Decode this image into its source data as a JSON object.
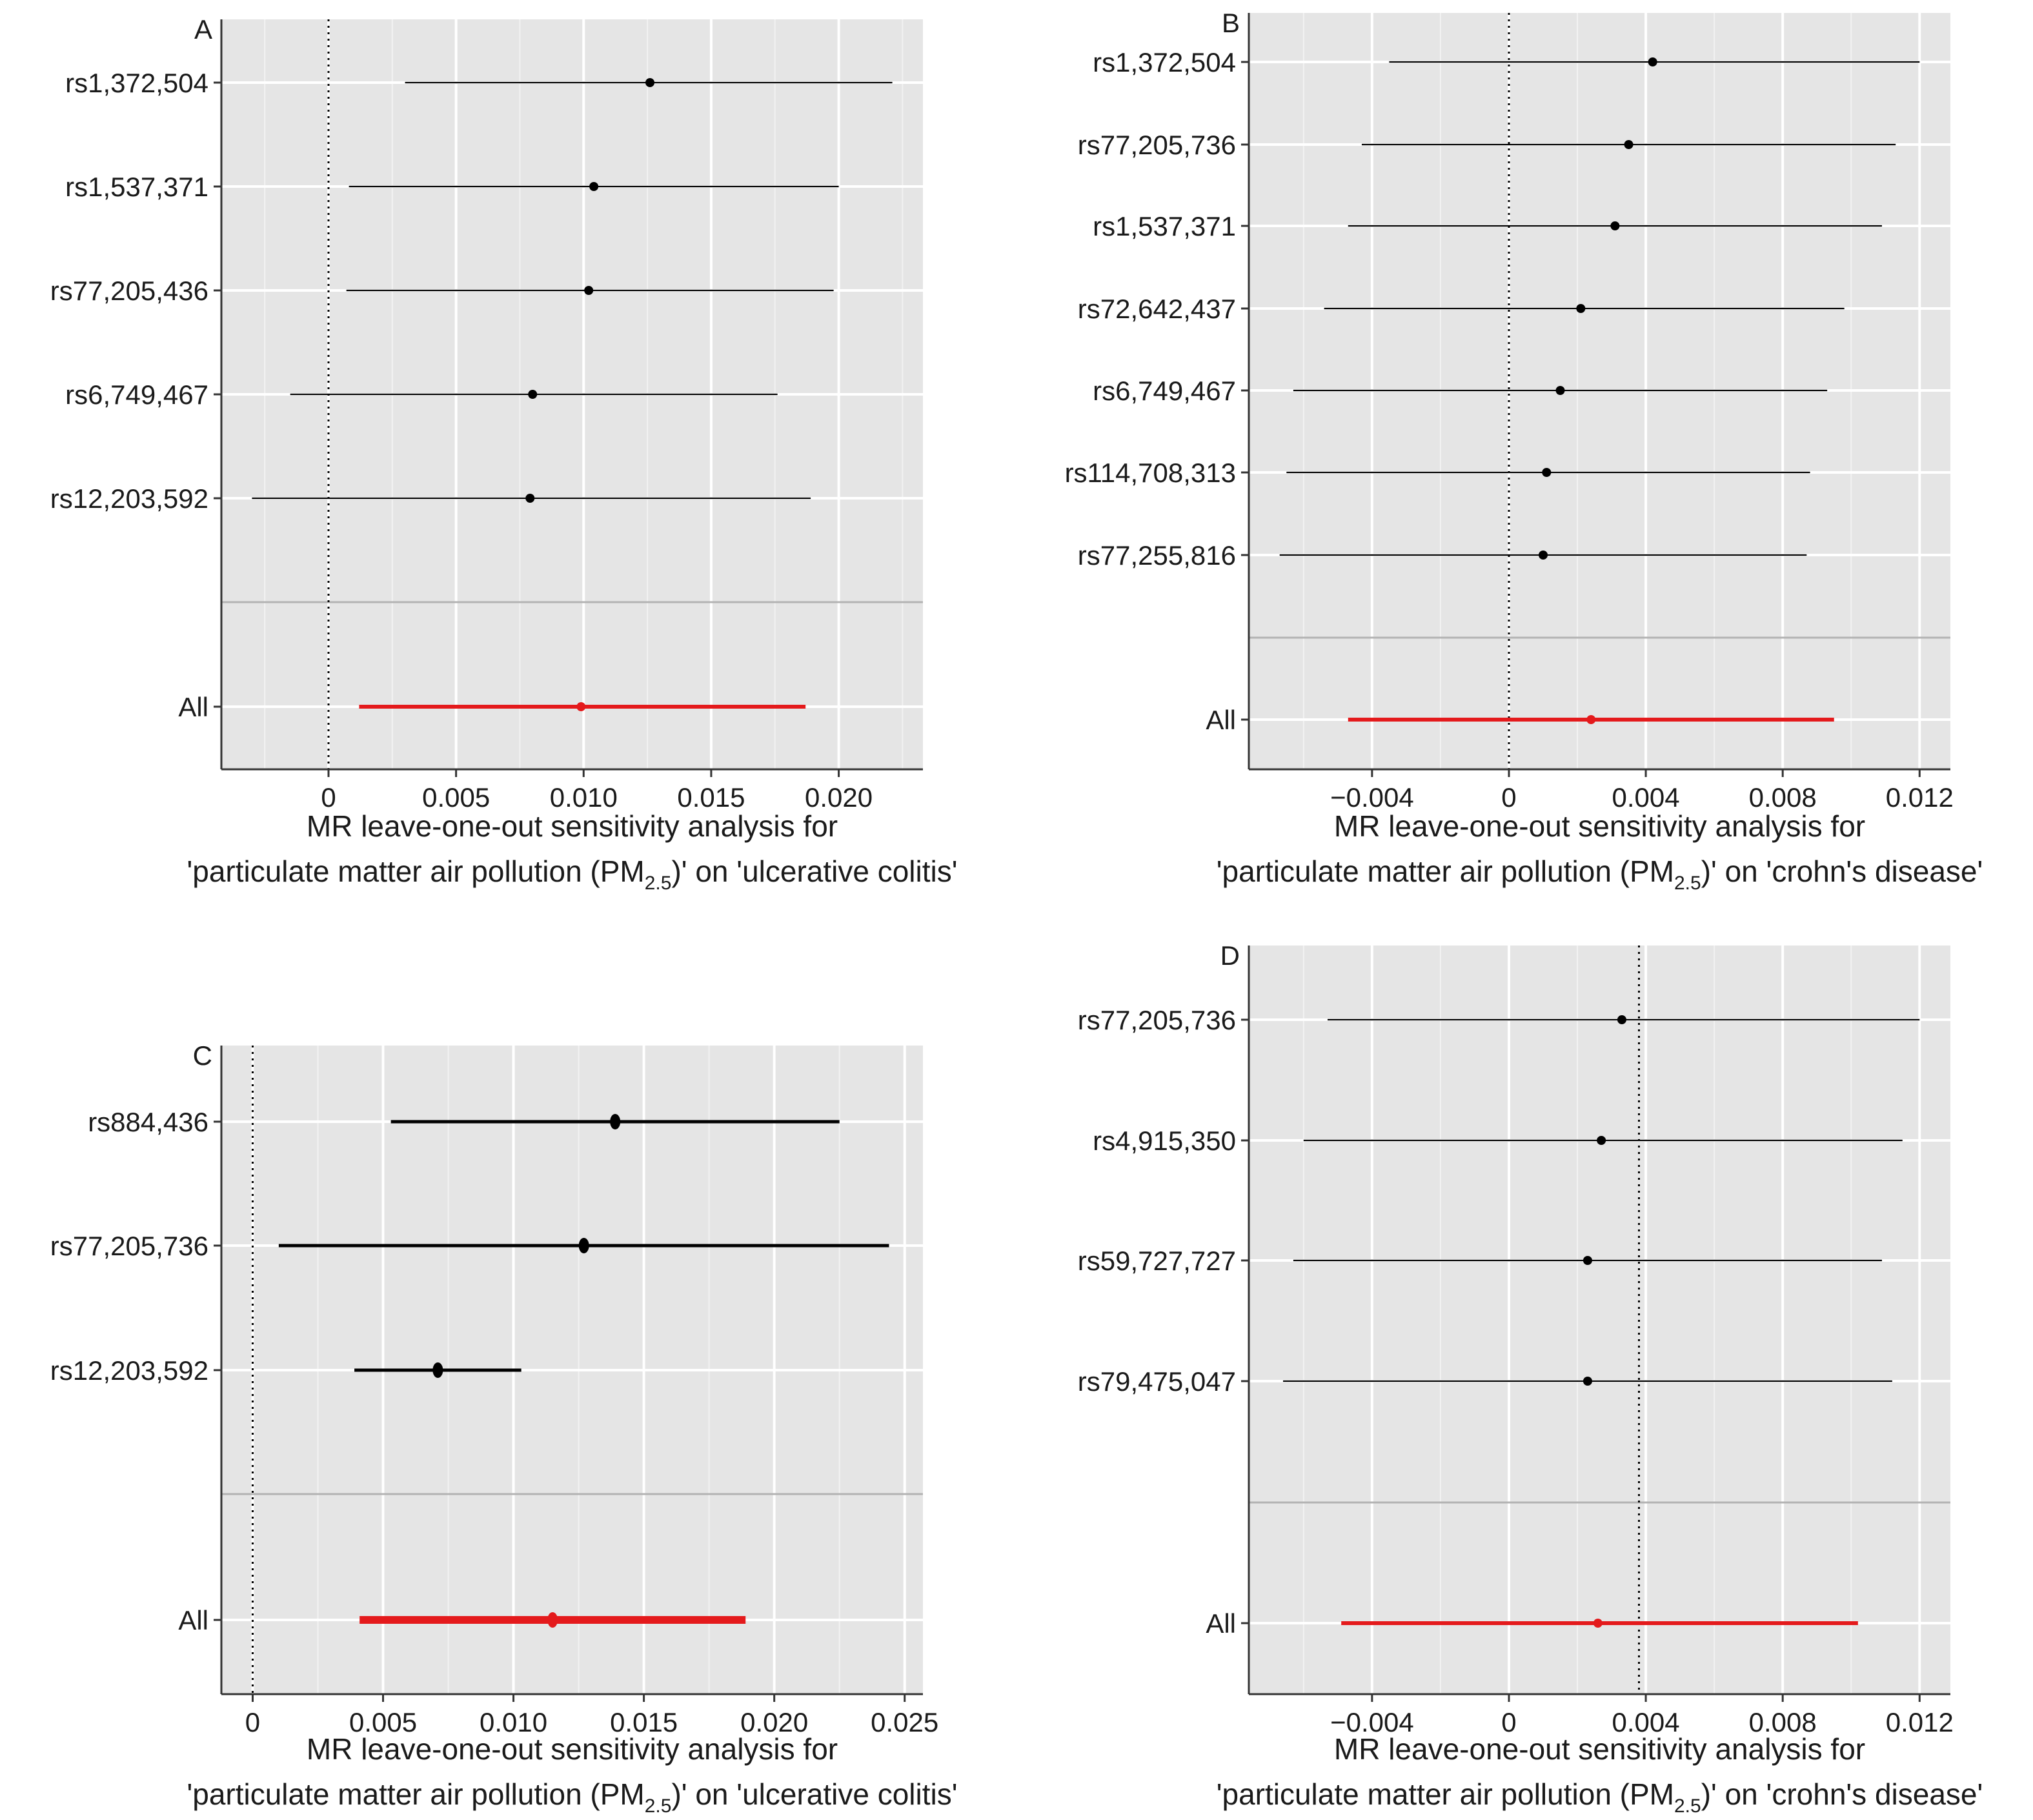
{
  "chart_data": [
    {
      "type": "forest",
      "panel": "A",
      "xlabel": [
        "MR leave-one-out sensitivity analysis for",
        "'particulate matter air pollution (PM",
        "2.5",
        ")' on 'ulcerative colitis'"
      ],
      "xlim": [
        -0.0042,
        0.0233
      ],
      "xticks": [
        0,
        0.005,
        0.01,
        0.015,
        0.02
      ],
      "xtick_labels": [
        "0",
        "0.005",
        "0.010",
        "0.015",
        "0.020"
      ],
      "reference_line": 0,
      "snps": [
        "rs1,372,504",
        "rs1,537,371",
        "rs77,205,436",
        "rs6,749,467",
        "rs12,203,592"
      ],
      "estimate": [
        0.0126,
        0.0104,
        0.0102,
        0.008,
        0.0079
      ],
      "ci_low": [
        0.003,
        0.0008,
        0.0007,
        -0.0015,
        -0.003
      ],
      "ci_high": [
        0.0221,
        0.02,
        0.0198,
        0.0176,
        0.0189
      ],
      "overall": {
        "label": "All",
        "estimate": 0.0099,
        "ci_low": 0.0012,
        "ci_high": 0.0187
      },
      "style": "thin"
    },
    {
      "type": "forest",
      "panel": "B",
      "xlabel": [
        "MR leave-one-out sensitivity analysis for",
        "'particulate matter air pollution (PM",
        "2.5",
        ")' on 'crohn's disease'"
      ],
      "xlim": [
        -0.0076,
        0.0129
      ],
      "xticks": [
        -0.004,
        0,
        0.004,
        0.008,
        0.012
      ],
      "xtick_labels": [
        "−0.004",
        "0",
        "0.004",
        "0.008",
        "0.012"
      ],
      "reference_line": 0,
      "snps": [
        "rs1,372,504",
        "rs77,205,736",
        "rs1,537,371",
        "rs72,642,437",
        "rs6,749,467",
        "rs114,708,313",
        "rs77,255,816"
      ],
      "estimate": [
        0.0042,
        0.0035,
        0.0031,
        0.0021,
        0.0015,
        0.0011,
        0.001
      ],
      "ci_low": [
        -0.0035,
        -0.0043,
        -0.0047,
        -0.0054,
        -0.0063,
        -0.0065,
        -0.0067
      ],
      "ci_high": [
        0.012,
        0.0113,
        0.0109,
        0.0098,
        0.0093,
        0.0088,
        0.0087
      ],
      "overall": {
        "label": "All",
        "estimate": 0.0024,
        "ci_low": -0.0047,
        "ci_high": 0.0095
      },
      "style": "thin"
    },
    {
      "type": "forest",
      "panel": "C",
      "xlabel": [
        "MR leave-one-out sensitivity analysis for",
        "'particulate matter air pollution (PM",
        "2.5",
        ")' on 'ulcerative colitis'"
      ],
      "xlim": [
        -0.0012,
        0.0257
      ],
      "xticks": [
        0,
        0.005,
        0.01,
        0.015,
        0.02,
        0.025
      ],
      "xtick_labels": [
        "0",
        "0.005",
        "0.010",
        "0.015",
        "0.020",
        "0.025"
      ],
      "reference_line": 0,
      "snps": [
        "rs884,436",
        "rs77,205,736",
        "rs12,203,592"
      ],
      "estimate": [
        0.0139,
        0.0127,
        0.0071
      ],
      "ci_low": [
        0.0053,
        0.001,
        0.0039
      ],
      "ci_high": [
        0.0225,
        0.0244,
        0.0103
      ],
      "overall": {
        "label": "All",
        "estimate": 0.0115,
        "ci_low": 0.0041,
        "ci_high": 0.0189
      },
      "style": "thick"
    },
    {
      "type": "forest",
      "panel": "D",
      "xlabel": [
        "MR leave-one-out sensitivity analysis for",
        "'particulate matter air pollution (PM",
        "2.5",
        ")' on 'crohn's disease'"
      ],
      "xlim": [
        -0.0076,
        0.0129
      ],
      "xticks": [
        -0.004,
        0,
        0.004,
        0.008,
        0.012
      ],
      "xtick_labels": [
        "−0.004",
        "0",
        "0.004",
        "0.008",
        "0.012"
      ],
      "reference_line": 0.0038,
      "snps": [
        "rs77,205,736",
        "rs4,915,350",
        "rs59,727,727",
        "rs79,475,047"
      ],
      "estimate": [
        0.0033,
        0.0027,
        0.0023,
        0.0023
      ],
      "ci_low": [
        -0.0053,
        -0.006,
        -0.0063,
        -0.0066
      ],
      "ci_high": [
        0.012,
        0.0115,
        0.0109,
        0.0112
      ],
      "overall": {
        "label": "All",
        "estimate": 0.0026,
        "ci_low": -0.0049,
        "ci_high": 0.0102
      },
      "style": "thin"
    }
  ],
  "colors": {
    "point": "#000000",
    "overall": "#e41a1c",
    "panel_background": "#e5e5e5",
    "grid": "#ffffff"
  }
}
